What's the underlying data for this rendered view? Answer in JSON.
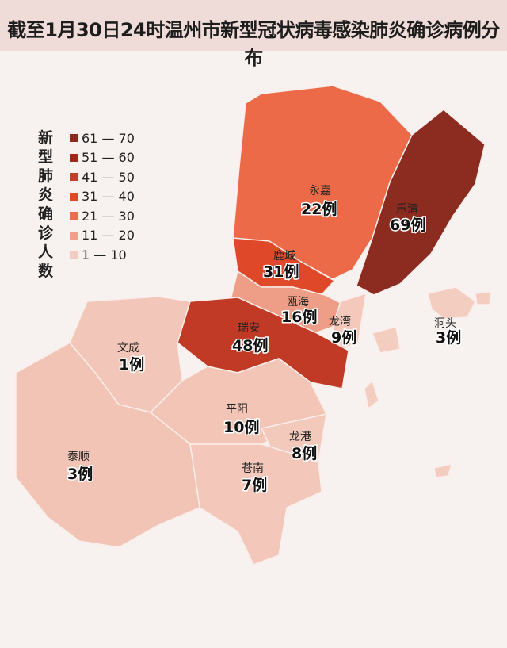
{
  "title": "截至1月30日24时温州市新型冠状病毒感染肺炎确诊病例分布",
  "legend": {
    "title": "新型肺炎确诊人数",
    "items": [
      {
        "label": "61 — 70",
        "color": "#8a2b1f"
      },
      {
        "label": "51 — 60",
        "color": "#9e2a1a"
      },
      {
        "label": "41 — 50",
        "color": "#c0412b"
      },
      {
        "label": "31 — 40",
        "color": "#df4a2b"
      },
      {
        "label": "21 — 30",
        "color": "#e8704e"
      },
      {
        "label": "11 — 20",
        "color": "#eea08b"
      },
      {
        "label": "1 — 10",
        "color": "#f3cdc2"
      }
    ]
  },
  "regions": [
    {
      "name": "永嘉",
      "count": "22例",
      "color": "#ec6a48"
    },
    {
      "name": "乐清",
      "count": "69例",
      "color": "#8c2b1f"
    },
    {
      "name": "鹿城",
      "count": "31例",
      "color": "#e0482a"
    },
    {
      "name": "瓯海",
      "count": "16例",
      "color": "#ee9e86"
    },
    {
      "name": "龙湾",
      "count": "9例",
      "color": "#f4c9bb"
    },
    {
      "name": "洞头",
      "count": "3例",
      "color": "#f4cdc1"
    },
    {
      "name": "瑞安",
      "count": "48例",
      "color": "#c03a25"
    },
    {
      "name": "文成",
      "count": "1例",
      "color": "#f2c6b8"
    },
    {
      "name": "平阳",
      "count": "10例",
      "color": "#f2c5b7"
    },
    {
      "name": "龙港",
      "count": "8例",
      "color": "#f3c9bc"
    },
    {
      "name": "苍南",
      "count": "7例",
      "color": "#f3c7b9"
    },
    {
      "name": "泰顺",
      "count": "3例",
      "color": "#f2c4b5"
    }
  ]
}
